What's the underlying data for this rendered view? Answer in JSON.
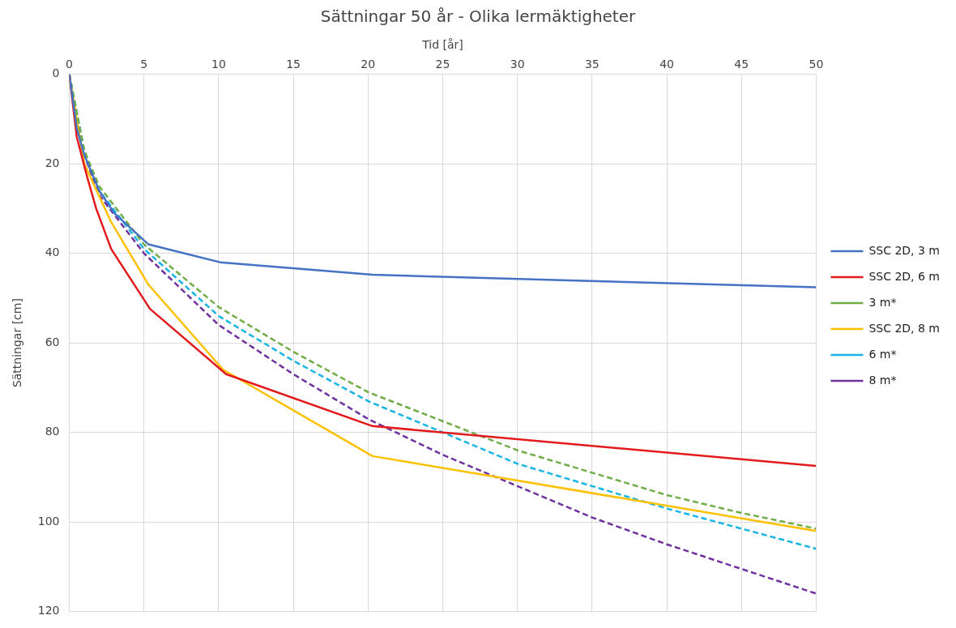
{
  "chart_data": {
    "type": "line",
    "title": "Sättningar 50 år - Olika lermäktigheter",
    "xlabel": "Tid [år]",
    "ylabel": "Sättningar [cm]",
    "xlim": [
      0,
      50
    ],
    "xticks": [
      0,
      5,
      10,
      15,
      20,
      25,
      30,
      35,
      40,
      45,
      50
    ],
    "ylim": [
      120,
      0
    ],
    "yticks": [
      0,
      20,
      40,
      60,
      80,
      100,
      120
    ],
    "grid": true,
    "legend": "right",
    "marker": "none",
    "series": [
      {
        "name": "SSC 2D, 3 m",
        "color": "#4472c4",
        "line_style": "solid",
        "x": [
          0,
          0.5,
          1,
          2,
          3,
          5.3,
          10.1,
          20.3,
          50
        ],
        "values": [
          0,
          12,
          18,
          26,
          31,
          38,
          42,
          44.8,
          47.6
        ]
      },
      {
        "name": "SSC 2D, 6 m",
        "color": "#e31a1c",
        "line_style": "solid",
        "x": [
          0,
          0.5,
          1.2,
          1.8,
          2.8,
          5.4,
          10.5,
          20.3,
          50
        ],
        "values": [
          0,
          14,
          23,
          30,
          39,
          52.4,
          67,
          78.6,
          87.5
        ]
      },
      {
        "name": "3 m*",
        "color": "#70ad47",
        "line_style": "dashed",
        "x": [
          0,
          1,
          2,
          5,
          10,
          15,
          20,
          25,
          30,
          35,
          40,
          45,
          50
        ],
        "values": [
          0,
          17,
          25,
          38,
          52,
          62,
          71,
          77.5,
          84,
          89,
          94,
          98,
          101.5
        ]
      },
      {
        "name": "SSC 2D, 8 m",
        "color": "#ffc000",
        "line_style": "solid",
        "x": [
          0,
          1,
          2.8,
          5.3,
          10.3,
          20.3,
          50
        ],
        "values": [
          0,
          20,
          33,
          47,
          66,
          85.3,
          102
        ]
      },
      {
        "name": "6 m*",
        "color": "#19b4e6",
        "line_style": "dashed",
        "x": [
          0,
          1,
          2,
          5,
          10,
          15,
          20,
          25,
          30,
          35,
          40,
          45,
          50
        ],
        "values": [
          0,
          17,
          26,
          39,
          54,
          64,
          73,
          80,
          87,
          92,
          97,
          101.5,
          106
        ]
      },
      {
        "name": "8 m*",
        "color": "#7030a0",
        "line_style": "dashed",
        "x": [
          0,
          1,
          2,
          5,
          10,
          15,
          20,
          25,
          30,
          35,
          40,
          45,
          50
        ],
        "values": [
          0,
          18,
          27,
          40,
          56,
          67,
          77,
          85,
          92,
          99,
          105,
          110.5,
          116
        ]
      }
    ]
  }
}
